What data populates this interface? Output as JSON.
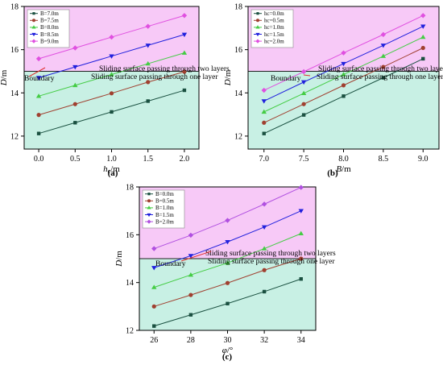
{
  "figure": {
    "labels": [
      "(a)",
      "(b)",
      "(c)"
    ],
    "annotations": {
      "two_layers": "Sliding surface passing through two layers",
      "one_layer": "Sliding surface passing through one layer",
      "boundary": "Boundary"
    },
    "colors": {
      "upper_region": "#f7c9f7",
      "lower_region": "#c8f0e4",
      "boundary_line": "#222222"
    }
  },
  "chart_data": [
    {
      "type": "line",
      "panel": "(a)",
      "xlabel": "hc/m",
      "xlabel_main": "h",
      "xlabel_sub": "c",
      "xlabel_unit": "/m",
      "ylabel": "D/m",
      "ylabel_main": "D",
      "ylabel_unit": "/m",
      "x": [
        0.0,
        0.5,
        1.0,
        1.5,
        2.0
      ],
      "xticks": [
        "0.0",
        "0.5",
        "1.0",
        "1.5",
        "2.0"
      ],
      "yticks": [
        "12",
        "14",
        "16",
        "18"
      ],
      "xlim": [
        -0.2,
        2.2
      ],
      "ylim": [
        11.4,
        18.0
      ],
      "boundary_y": 15.0,
      "legend_position": "top-left",
      "series": [
        {
          "name": "B=7.0m",
          "color": "#1a5040",
          "marker": "square",
          "values": [
            12.12,
            12.62,
            13.12,
            13.62,
            14.12
          ]
        },
        {
          "name": "B=7.5m",
          "color": "#a04030",
          "marker": "circle",
          "values": [
            12.98,
            13.48,
            13.98,
            14.5,
            14.98
          ]
        },
        {
          "name": "B=8.0m",
          "color": "#44cc44",
          "marker": "triangle-up",
          "values": [
            13.85,
            14.35,
            14.85,
            15.35,
            15.85
          ]
        },
        {
          "name": "B=8.5m",
          "color": "#2020dd",
          "marker": "triangle-down",
          "values": [
            14.7,
            15.2,
            15.7,
            16.2,
            16.7
          ]
        },
        {
          "name": "B=9.0m",
          "color": "#e050e0",
          "marker": "diamond",
          "values": [
            15.58,
            16.08,
            16.58,
            17.08,
            17.58
          ]
        }
      ]
    },
    {
      "type": "line",
      "panel": "(b)",
      "xlabel": "B/m",
      "xlabel_main": "B",
      "xlabel_sub": "",
      "xlabel_unit": "/m",
      "ylabel": "D/m",
      "ylabel_main": "D",
      "ylabel_unit": "/m",
      "x": [
        7.0,
        7.5,
        8.0,
        8.5,
        9.0
      ],
      "xticks": [
        "7.0",
        "7.5",
        "8.0",
        "8.5",
        "9.0"
      ],
      "yticks": [
        "12",
        "14",
        "16",
        "18"
      ],
      "xlim": [
        6.8,
        9.2
      ],
      "ylim": [
        11.4,
        18.0
      ],
      "boundary_y": 15.0,
      "legend_position": "top-left",
      "series": [
        {
          "name": "hc=0.0m",
          "color": "#1a5040",
          "marker": "square",
          "values": [
            12.12,
            12.98,
            13.85,
            14.7,
            15.58
          ]
        },
        {
          "name": "hc=0.5m",
          "color": "#a04030",
          "marker": "circle",
          "values": [
            12.62,
            13.48,
            14.35,
            15.2,
            16.08
          ]
        },
        {
          "name": "hc=1.0m",
          "color": "#44cc44",
          "marker": "triangle-up",
          "values": [
            13.12,
            13.98,
            14.85,
            15.7,
            16.58
          ]
        },
        {
          "name": "hc=1.5m",
          "color": "#2020dd",
          "marker": "triangle-down",
          "values": [
            13.62,
            14.5,
            15.35,
            16.2,
            17.08
          ]
        },
        {
          "name": "hc=2.0m",
          "color": "#e050e0",
          "marker": "diamond",
          "values": [
            14.12,
            14.98,
            15.85,
            16.7,
            17.58
          ]
        }
      ]
    },
    {
      "type": "line",
      "panel": "(c)",
      "xlabel": "φ/°",
      "xlabel_main": "φ",
      "xlabel_sub": "",
      "xlabel_unit": "/°",
      "ylabel": "D/m",
      "ylabel_main": "D",
      "ylabel_unit": "/m",
      "x": [
        26,
        28,
        30,
        32,
        34
      ],
      "xticks": [
        "26",
        "28",
        "30",
        "32",
        "34"
      ],
      "yticks": [
        "12",
        "14",
        "16",
        "18"
      ],
      "xlim": [
        25.2,
        34.8
      ],
      "ylim": [
        12.0,
        18.0
      ],
      "boundary_y": 15.0,
      "legend_position": "top-left",
      "series": [
        {
          "name": "B=0.0m",
          "color": "#1a5040",
          "marker": "square",
          "values": [
            12.18,
            12.65,
            13.12,
            13.62,
            14.15
          ]
        },
        {
          "name": "B=0.5m",
          "color": "#a04030",
          "marker": "circle",
          "values": [
            13.0,
            13.48,
            13.98,
            14.52,
            15.0
          ]
        },
        {
          "name": "B=1.0m",
          "color": "#44cc44",
          "marker": "triangle-up",
          "values": [
            13.8,
            14.32,
            14.82,
            15.42,
            16.05
          ]
        },
        {
          "name": "B=1.5m",
          "color": "#2020dd",
          "marker": "triangle-down",
          "values": [
            14.62,
            15.12,
            15.7,
            16.32,
            17.0
          ]
        },
        {
          "name": "B=2.0m",
          "color": "#b050e0",
          "marker": "diamond",
          "values": [
            15.42,
            15.98,
            16.6,
            17.28,
            17.98
          ]
        }
      ]
    }
  ]
}
